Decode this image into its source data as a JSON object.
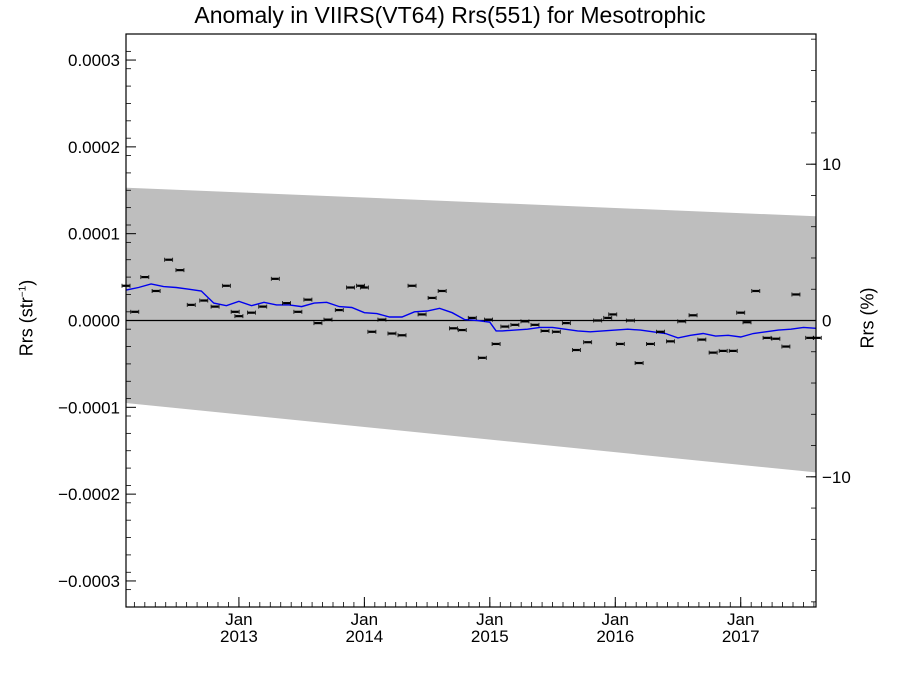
{
  "chart_data": {
    "type": "scatter",
    "title": "Anomaly in VIIRS(VT64) Rrs(551) for Mesotrophic",
    "ylabel_left": {
      "prefix": "Rrs (str",
      "sup": "−1",
      "suffix": ")"
    },
    "ylabel_right": "Rrs (%)",
    "xlim": [
      2012.1,
      2017.6
    ],
    "ylim_left": [
      -0.00033,
      0.00033
    ],
    "ylim_right": [
      -18.33,
      18.33
    ],
    "yticks_left": [
      {
        "value": 0.0003,
        "label": "0.0003"
      },
      {
        "value": 0.0002,
        "label": "0.0002"
      },
      {
        "value": 0.0001,
        "label": "0.0001"
      },
      {
        "value": 0.0,
        "label": "0.0000"
      },
      {
        "value": -0.0001,
        "label": "−0.0001"
      },
      {
        "value": -0.0002,
        "label": "−0.0002"
      },
      {
        "value": -0.0003,
        "label": "−0.0003"
      }
    ],
    "yticks_right": [
      {
        "value": 10,
        "label": "10"
      },
      {
        "value": 0,
        "label": "0"
      },
      {
        "value": -10,
        "label": "−10"
      }
    ],
    "xticks": [
      {
        "value": 2013.0,
        "month": "Jan",
        "year": "2013"
      },
      {
        "value": 2014.0,
        "month": "Jan",
        "year": "2014"
      },
      {
        "value": 2015.0,
        "month": "Jan",
        "year": "2015"
      },
      {
        "value": 2016.0,
        "month": "Jan",
        "year": "2016"
      },
      {
        "value": 2017.0,
        "month": "Jan",
        "year": "2017"
      }
    ],
    "xminor_step_months": 1,
    "zero_line": 0,
    "uncertainty_band": {
      "upper": [
        [
          2012.1,
          0.000153
        ],
        [
          2017.6,
          0.00012
        ]
      ],
      "lower": [
        [
          2012.1,
          -9.5e-05
        ],
        [
          2017.6,
          -0.000175
        ]
      ],
      "color": "#bebebe"
    },
    "points": {
      "color": "#000000",
      "x": [
        2012.1,
        2012.17,
        2012.25,
        2012.34,
        2012.44,
        2012.53,
        2012.62,
        2012.72,
        2012.81,
        2012.9,
        2012.97,
        2013.0,
        2013.1,
        2013.19,
        2013.29,
        2013.38,
        2013.47,
        2013.55,
        2013.63,
        2013.71,
        2013.8,
        2013.89,
        2013.97,
        2014.0,
        2014.06,
        2014.14,
        2014.22,
        2014.3,
        2014.38,
        2014.46,
        2014.54,
        2014.62,
        2014.71,
        2014.78,
        2014.86,
        2014.94,
        2014.99,
        2015.05,
        2015.12,
        2015.2,
        2015.28,
        2015.36,
        2015.44,
        2015.53,
        2015.61,
        2015.69,
        2015.78,
        2015.86,
        2015.94,
        2015.98,
        2016.04,
        2016.12,
        2016.19,
        2016.28,
        2016.36,
        2016.44,
        2016.53,
        2016.62,
        2016.69,
        2016.78,
        2016.86,
        2016.94,
        2017.0,
        2017.05,
        2017.12,
        2017.21,
        2017.28,
        2017.36,
        2017.44,
        2017.55,
        2017.61
      ],
      "y": [
        4e-05,
        1e-05,
        5e-05,
        3.4e-05,
        7e-05,
        5.8e-05,
        1.8e-05,
        2.3e-05,
        1.6e-05,
        4e-05,
        1e-05,
        5e-06,
        9e-06,
        1.6e-05,
        4.8e-05,
        2e-05,
        1e-05,
        2.4e-05,
        -3e-06,
        1e-06,
        1.2e-05,
        3.8e-05,
        4e-05,
        3.8e-05,
        -1.3e-05,
        1e-06,
        -1.5e-05,
        -1.7e-05,
        4e-05,
        7e-06,
        2.6e-05,
        3.4e-05,
        -9e-06,
        -1.1e-05,
        3e-06,
        -4.3e-05,
        1e-06,
        -2.7e-05,
        -7e-06,
        -5e-06,
        -1e-06,
        -5e-06,
        -1.2e-05,
        -1.3e-05,
        -3e-06,
        -3.4e-05,
        -2.5e-05,
        0.0,
        3e-06,
        7e-06,
        -2.7e-05,
        0.0,
        -4.9e-05,
        -2.7e-05,
        -1.3e-05,
        -2.4e-05,
        -1e-06,
        6e-06,
        -2.2e-05,
        -3.7e-05,
        -3.5e-05,
        -3.5e-05,
        9e-06,
        -2e-06,
        3.4e-05,
        -2e-05,
        -2.1e-05,
        -3e-05,
        3e-05,
        -2e-05,
        -2e-05
      ]
    },
    "trend_line": {
      "color": "#0000ee",
      "x": [
        2012.1,
        2012.2,
        2012.3,
        2012.4,
        2012.5,
        2012.6,
        2012.7,
        2012.8,
        2012.9,
        2013.0,
        2013.1,
        2013.2,
        2013.3,
        2013.4,
        2013.5,
        2013.6,
        2013.7,
        2013.8,
        2013.9,
        2014.0,
        2014.1,
        2014.2,
        2014.3,
        2014.4,
        2014.5,
        2014.6,
        2014.7,
        2014.8,
        2014.9,
        2015.0,
        2015.05,
        2015.1,
        2015.2,
        2015.3,
        2015.4,
        2015.5,
        2015.6,
        2015.7,
        2015.8,
        2015.9,
        2016.0,
        2016.1,
        2016.2,
        2016.3,
        2016.4,
        2016.5,
        2016.6,
        2016.7,
        2016.8,
        2016.9,
        2017.0,
        2017.1,
        2017.2,
        2017.3,
        2017.4,
        2017.5,
        2017.6
      ],
      "y": [
        3.5e-05,
        3.8e-05,
        4.2e-05,
        3.9e-05,
        3.8e-05,
        3.6e-05,
        3.4e-05,
        2e-05,
        1.7e-05,
        2.2e-05,
        1.7e-05,
        2.1e-05,
        1.8e-05,
        1.8e-05,
        1.6e-05,
        2e-05,
        2.1e-05,
        1.6e-05,
        1.5e-05,
        9e-06,
        8e-06,
        4e-06,
        4e-06,
        1e-05,
        1.1e-05,
        1.4e-05,
        9e-06,
        1e-06,
        0.0,
        -2e-06,
        -1.2e-05,
        -1.2e-05,
        -1.1e-05,
        -1e-05,
        -8e-06,
        -8e-06,
        -1e-05,
        -1.2e-05,
        -1.3e-05,
        -1.2e-05,
        -1.1e-05,
        -1e-05,
        -1.1e-05,
        -1.3e-05,
        -1.5e-05,
        -2e-05,
        -1.7e-05,
        -1.5e-05,
        -1.8e-05,
        -1.7e-05,
        -1.9e-05,
        -1.5e-05,
        -1.3e-05,
        -1.1e-05,
        -1e-05,
        -8e-06,
        -9e-06
      ]
    },
    "grid": false,
    "legend": "none"
  }
}
